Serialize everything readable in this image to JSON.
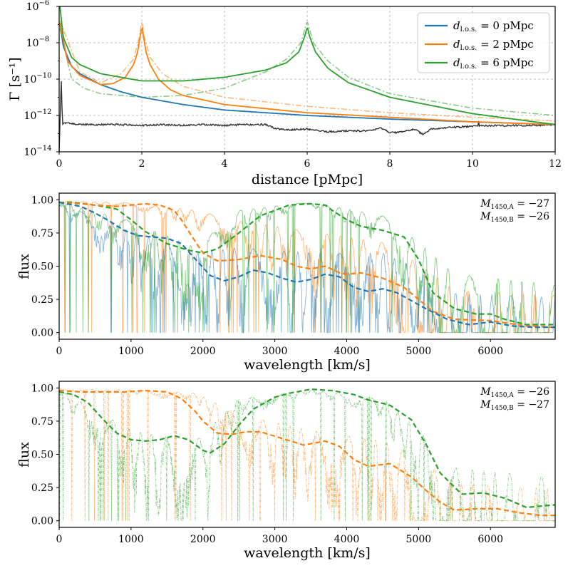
{
  "colors": {
    "blue": "#1f77b4",
    "orange": "#ff7f0e",
    "green": "#2ca02c",
    "dark": "#333333"
  },
  "chart_data": [
    {
      "type": "line",
      "ylabel": "Γ [s⁻¹]",
      "xlabel": "distance [pMpc]",
      "xlim": [
        0,
        12
      ],
      "ylim_exp": [
        -14,
        -6
      ],
      "yscale": "log",
      "grid": true,
      "legend_position": "top-right",
      "x_ticks": [
        "0",
        "2",
        "4",
        "6",
        "8",
        "10",
        "12"
      ],
      "y_ticks": [
        {
          "base": "10",
          "exp": "−14",
          "e": -14
        },
        {
          "base": "10",
          "exp": "−12",
          "e": -12
        },
        {
          "base": "10",
          "exp": "−10",
          "e": -10
        },
        {
          "base": "10",
          "exp": "−8",
          "e": -8
        },
        {
          "base": "10",
          "exp": "−6",
          "e": -6
        }
      ],
      "legend": [
        {
          "sym": "d",
          "sub": "l.o.s.",
          "rest": " = 0 pMpc",
          "color": "#1f77b4"
        },
        {
          "sym": "d",
          "sub": "l.o.s.",
          "rest": " = 2 pMpc",
          "color": "#ff7f0e"
        },
        {
          "sym": "d",
          "sub": "l.o.s.",
          "rest": " = 6 pMpc",
          "color": "#2ca02c"
        }
      ],
      "series": [
        {
          "name": "d_l.o.s. = 0 pMpc",
          "color": "#1f77b4",
          "style": "solid",
          "x": [
            0.02,
            0.1,
            0.3,
            0.5,
            1,
            1.5,
            2,
            3,
            4,
            6,
            8,
            10,
            12
          ],
          "log10y": [
            -6.9,
            -8.2,
            -9.3,
            -9.7,
            -10.3,
            -10.7,
            -11.0,
            -11.4,
            -11.7,
            -12.0,
            -12.2,
            -12.35,
            -12.5
          ]
        },
        {
          "name": "d_l.o.s. = 2 pMpc",
          "color": "#ff7f0e",
          "style": "solid",
          "x": [
            0.02,
            0.2,
            0.5,
            1,
            1.3,
            1.6,
            1.8,
            1.9,
            1.97,
            2,
            2.03,
            2.1,
            2.2,
            2.4,
            2.7,
            3,
            4,
            6,
            8,
            10,
            12
          ],
          "log10y": [
            -6.9,
            -9.0,
            -9.8,
            -10.3,
            -10.25,
            -9.9,
            -9.2,
            -8.5,
            -7.5,
            -7.1,
            -7.5,
            -8.5,
            -9.2,
            -10.0,
            -10.6,
            -10.9,
            -11.4,
            -11.85,
            -12.1,
            -12.35,
            -12.5
          ]
        },
        {
          "name": "d_l.o.s. = 6 pMpc",
          "color": "#2ca02c",
          "style": "solid",
          "x": [
            0.02,
            0.1,
            0.3,
            0.5,
            1,
            2,
            3,
            4,
            5,
            5.5,
            5.8,
            5.95,
            6,
            6.05,
            6.2,
            6.5,
            7,
            8,
            10,
            12
          ],
          "log10y": [
            -6.0,
            -7.7,
            -8.8,
            -9.2,
            -9.7,
            -10.1,
            -10.1,
            -9.9,
            -9.5,
            -9.1,
            -8.5,
            -7.6,
            -7.1,
            -7.6,
            -8.5,
            -9.4,
            -10.2,
            -11.0,
            -11.9,
            -12.5
          ]
        },
        {
          "name": "d_l.o.s. = 2 pMpc (dash-dot)",
          "color": "#ff7f0e",
          "style": "dashdot",
          "x": [
            0.02,
            0.5,
            1,
            1.5,
            1.8,
            1.95,
            2,
            2.05,
            2.2,
            2.5,
            3,
            4,
            6,
            8,
            10,
            12
          ],
          "log10y": [
            -6.8,
            -9.6,
            -10.2,
            -9.7,
            -8.9,
            -7.6,
            -6.7,
            -7.6,
            -8.8,
            -9.7,
            -10.4,
            -11.0,
            -11.5,
            -11.85,
            -12.1,
            -12.3
          ]
        },
        {
          "name": "d_l.o.s. = 6 pMpc (dash-dot)",
          "color": "#2ca02c",
          "style": "dashdot",
          "x": [
            0.02,
            0.3,
            0.6,
            1,
            2,
            3,
            4,
            5,
            5.5,
            5.85,
            6,
            6.15,
            6.5,
            7,
            8,
            10,
            12
          ],
          "log10y": [
            -7.2,
            -10.0,
            -10.5,
            -10.8,
            -11.0,
            -10.9,
            -10.5,
            -9.6,
            -8.9,
            -8.0,
            -6.8,
            -8.0,
            -9.0,
            -9.9,
            -10.8,
            -11.6,
            -12.0
          ]
        },
        {
          "name": "background",
          "color": "#333333",
          "style": "solid",
          "x": [
            0,
            0.05,
            0.08,
            0.12,
            0.5,
            1,
            1.5,
            2,
            2.5,
            3,
            3.5,
            4,
            4.5,
            5,
            5.2,
            5.5,
            6,
            6.5,
            7,
            7.5,
            7.8,
            8,
            8.3,
            8.6,
            8.8,
            9,
            9.5,
            10,
            10.5,
            11,
            11.5,
            12
          ],
          "log10y": [
            -14,
            -10,
            -12.5,
            -12.4,
            -12.5,
            -12.5,
            -12.5,
            -12.55,
            -12.5,
            -12.55,
            -12.5,
            -12.55,
            -12.5,
            -12.5,
            -12.7,
            -12.8,
            -12.75,
            -12.9,
            -12.85,
            -12.85,
            -12.7,
            -12.95,
            -12.9,
            -12.75,
            -13.05,
            -12.75,
            -12.65,
            -12.6,
            -12.55,
            -12.55,
            -12.55,
            -12.5
          ]
        }
      ]
    },
    {
      "type": "line",
      "ylabel": "flux",
      "xlabel": "wavelength [km/s]",
      "xlim": [
        0,
        6900
      ],
      "ylim": [
        -0.05,
        1.05
      ],
      "x_ticks": [
        "0",
        "1000",
        "2000",
        "3000",
        "4000",
        "5000",
        "6000"
      ],
      "y_ticks": [
        "0.00",
        "0.25",
        "0.50",
        "0.75",
        "1.00"
      ],
      "annotation": [
        {
          "sym": "M",
          "sub": "1450,A",
          "rest": " = −27"
        },
        {
          "sym": "M",
          "sub": "1450,B",
          "rest": " = −26"
        }
      ],
      "smooth_series": [
        {
          "color": "#2ca02c",
          "x": [
            0,
            200,
            500,
            800,
            1000,
            1200,
            1500,
            1800,
            2000,
            2200,
            2500,
            2800,
            3200,
            3500,
            3700,
            3800,
            4000,
            4200,
            4500,
            4800,
            5000,
            5200,
            5500,
            5800,
            6000,
            6200,
            6500,
            6900
          ],
          "y": [
            0.98,
            0.98,
            0.96,
            0.93,
            0.85,
            0.76,
            0.67,
            0.62,
            0.6,
            0.63,
            0.75,
            0.88,
            0.96,
            0.97,
            0.96,
            0.92,
            0.85,
            0.8,
            0.77,
            0.72,
            0.55,
            0.3,
            0.18,
            0.14,
            0.14,
            0.1,
            0.06,
            0.06
          ]
        },
        {
          "color": "#ff7f0e",
          "x": [
            0,
            300,
            500,
            800,
            1000,
            1200,
            1400,
            1600,
            1700,
            1900,
            2000,
            2200,
            2500,
            2800,
            3100,
            3300,
            3500,
            3700,
            3900,
            4000,
            4200,
            4500,
            4800,
            5000,
            5200,
            5500,
            6000,
            6500,
            6900
          ],
          "y": [
            0.98,
            0.97,
            0.96,
            0.95,
            0.96,
            0.97,
            0.96,
            0.92,
            0.85,
            0.68,
            0.6,
            0.54,
            0.55,
            0.58,
            0.55,
            0.5,
            0.48,
            0.5,
            0.45,
            0.44,
            0.45,
            0.41,
            0.34,
            0.25,
            0.16,
            0.1,
            0.09,
            0.05,
            0.04
          ]
        },
        {
          "color": "#1f77b4",
          "x": [
            0,
            300,
            500,
            700,
            900,
            1100,
            1300,
            1500,
            1700,
            1900,
            2100,
            2300,
            2500,
            2700,
            2900,
            3100,
            3300,
            3500,
            3700,
            3900,
            4100,
            4300,
            4500,
            4700,
            4900,
            5100,
            5400,
            5700,
            6000,
            6300,
            6600,
            6900
          ],
          "y": [
            0.98,
            0.95,
            0.9,
            0.84,
            0.77,
            0.73,
            0.72,
            0.71,
            0.67,
            0.55,
            0.43,
            0.39,
            0.42,
            0.47,
            0.45,
            0.41,
            0.38,
            0.4,
            0.44,
            0.42,
            0.34,
            0.31,
            0.33,
            0.3,
            0.24,
            0.18,
            0.1,
            0.06,
            0.08,
            0.05,
            0.04,
            0.04
          ]
        }
      ],
      "spiky_series": [
        {
          "color": "#ff7f0e",
          "seed": 11,
          "x": [
            0,
            1000,
            1900,
            2500,
            3500,
            4500,
            5000,
            5500,
            6900
          ],
          "base": [
            0.99,
            0.97,
            0.9,
            0.8,
            0.7,
            0.6,
            0.4,
            0.15,
            0.1
          ]
        },
        {
          "color": "#1f77b4",
          "seed": 23,
          "x": [
            0,
            1000,
            1900,
            2500,
            3500,
            4500,
            5000,
            5500,
            6900
          ],
          "base": [
            0.97,
            0.7,
            0.5,
            0.55,
            0.5,
            0.5,
            0.35,
            0.12,
            0.08
          ]
        },
        {
          "color": "#2ca02c",
          "seed": 37,
          "x": [
            0,
            1000,
            1900,
            2500,
            3500,
            4500,
            5000,
            5500,
            6900
          ],
          "base": [
            0.98,
            0.8,
            0.55,
            0.9,
            0.98,
            0.85,
            0.6,
            0.3,
            0.2
          ]
        }
      ]
    },
    {
      "type": "line",
      "ylabel": "flux",
      "xlabel": "wavelength [km/s]",
      "xlim": [
        0,
        6900
      ],
      "ylim": [
        -0.05,
        1.05
      ],
      "x_ticks": [
        "0",
        "1000",
        "2000",
        "3000",
        "4000",
        "5000",
        "6000"
      ],
      "y_ticks": [
        "0.00",
        "0.25",
        "0.50",
        "0.75",
        "1.00"
      ],
      "annotation": [
        {
          "sym": "M",
          "sub": "1450,A",
          "rest": " = −26"
        },
        {
          "sym": "M",
          "sub": "1450,B",
          "rest": " = −27"
        }
      ],
      "smooth_series": [
        {
          "color": "#ff7f0e",
          "x": [
            0,
            300,
            600,
            900,
            1200,
            1500,
            1700,
            1900,
            2000,
            2200,
            2400,
            2600,
            2800,
            3100,
            3400,
            3700,
            3900,
            4100,
            4300,
            4600,
            4900,
            5100,
            5300,
            5500,
            5800,
            6100,
            6400,
            6700,
            6900
          ],
          "y": [
            0.98,
            0.97,
            0.97,
            0.97,
            0.98,
            0.97,
            0.92,
            0.82,
            0.75,
            0.66,
            0.65,
            0.67,
            0.67,
            0.62,
            0.57,
            0.6,
            0.56,
            0.46,
            0.41,
            0.43,
            0.33,
            0.23,
            0.14,
            0.08,
            0.09,
            0.09,
            0.06,
            0.04,
            0.04
          ]
        },
        {
          "color": "#2ca02c",
          "x": [
            0,
            200,
            400,
            600,
            800,
            1000,
            1200,
            1400,
            1600,
            1800,
            2000,
            2100,
            2300,
            2500,
            2700,
            3000,
            3200,
            3500,
            3800,
            4100,
            4300,
            4600,
            4900,
            5100,
            5300,
            5600,
            5900,
            6200,
            6500,
            6900
          ],
          "y": [
            0.97,
            0.95,
            0.89,
            0.77,
            0.66,
            0.61,
            0.6,
            0.61,
            0.64,
            0.61,
            0.53,
            0.51,
            0.58,
            0.72,
            0.84,
            0.93,
            0.96,
            0.99,
            0.98,
            0.95,
            0.91,
            0.87,
            0.76,
            0.58,
            0.36,
            0.2,
            0.21,
            0.17,
            0.1,
            0.12
          ]
        }
      ],
      "spiky_series": [
        {
          "color": "#ff7f0e",
          "seed": 53,
          "x": [
            0,
            1000,
            1900,
            2500,
            3500,
            4500,
            5000,
            5500,
            6900
          ],
          "base": [
            0.99,
            0.98,
            0.95,
            0.75,
            0.6,
            0.5,
            0.35,
            0.1,
            0.05
          ],
          "dashed": true
        },
        {
          "color": "#2ca02c",
          "seed": 71,
          "x": [
            0,
            1000,
            1900,
            2500,
            3500,
            4500,
            5000,
            5500,
            6900
          ],
          "base": [
            0.98,
            0.6,
            0.5,
            0.9,
            0.98,
            0.9,
            0.6,
            0.25,
            0.15
          ],
          "dashed": true
        }
      ]
    }
  ]
}
